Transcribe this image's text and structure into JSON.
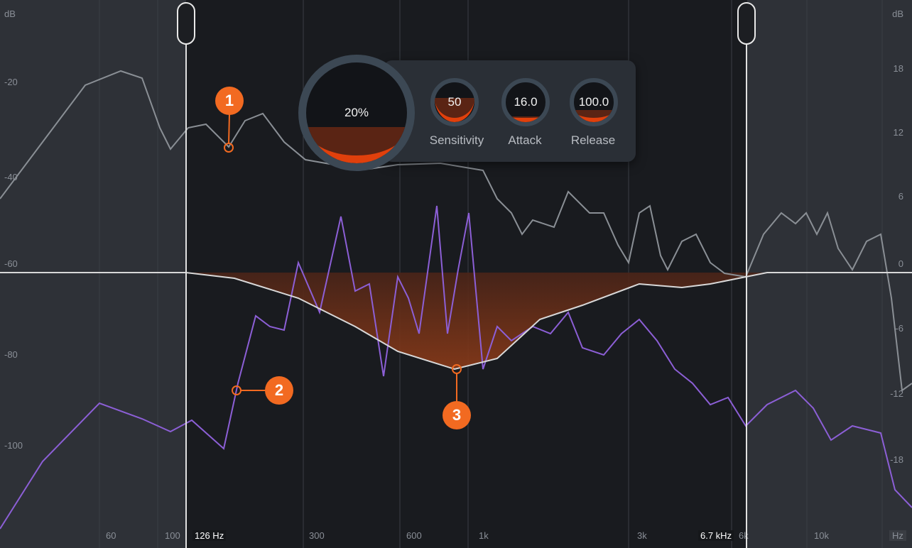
{
  "axis": {
    "left_unit": "dB",
    "right_unit": "dB",
    "x_unit": "Hz",
    "left_ticks": [
      "-20",
      "-40",
      "-60",
      "-80",
      "-100"
    ],
    "right_ticks": [
      "18",
      "12",
      "6",
      "0",
      "-6",
      "-12",
      "-18"
    ],
    "freq_ticks": [
      "60",
      "100",
      "300",
      "600",
      "1k",
      "3k",
      "6k",
      "10k"
    ]
  },
  "band": {
    "low_label": "126 Hz",
    "high_label": "6.7 kHz"
  },
  "controls": {
    "amount": {
      "value": "20%",
      "level": 0.2
    },
    "sensitivity": {
      "label": "Sensitivity",
      "value": "50",
      "level": 0.5
    },
    "attack": {
      "label": "Attack",
      "value": "16.0",
      "level": 0.05
    },
    "release": {
      "label": "Release",
      "value": "100.0",
      "level": 0.2
    }
  },
  "callouts": [
    "1",
    "2",
    "3"
  ],
  "colors": {
    "accent": "#f26a21",
    "input_spectrum": "#8a8f95",
    "output_spectrum": "#8c5fd6",
    "gain_curve": "#d8d8d8"
  }
}
